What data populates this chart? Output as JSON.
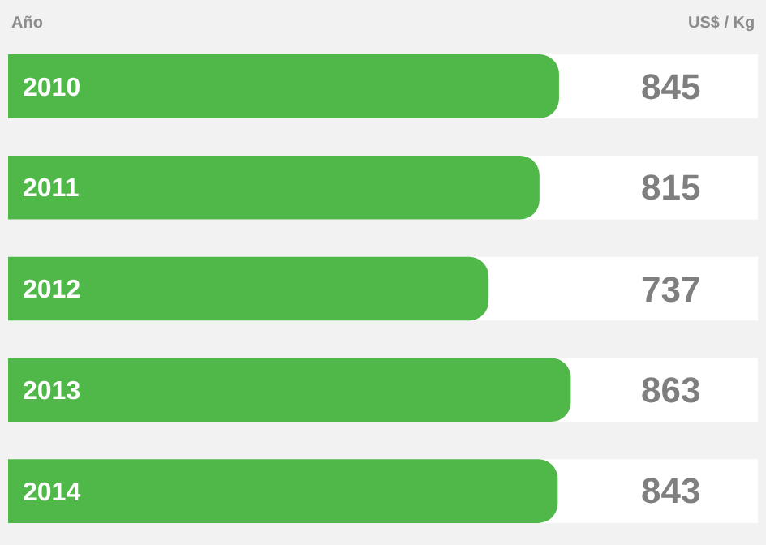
{
  "chart_data": {
    "type": "bar",
    "orientation": "horizontal",
    "ylabel": "Año",
    "xlabel": "US$ / Kg",
    "categories": [
      "2010",
      "2011",
      "2012",
      "2013",
      "2014"
    ],
    "values": [
      845,
      815,
      737,
      863,
      843
    ],
    "color": "#50b848",
    "xlim": [
      0,
      1150
    ],
    "data_labels": true
  }
}
